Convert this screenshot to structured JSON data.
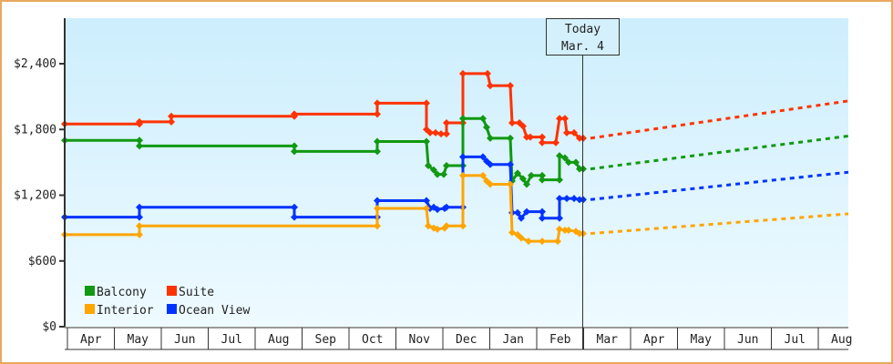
{
  "chart_data": {
    "type": "line",
    "title": "",
    "xlabel": "",
    "ylabel": "",
    "ylim": [
      0,
      2880
    ],
    "y_ticks": [
      {
        "value": 0,
        "label": "$0"
      },
      {
        "value": 600,
        "label": "$600"
      },
      {
        "value": 1200,
        "label": "$1,200"
      },
      {
        "value": 1800,
        "label": "$1,800"
      },
      {
        "value": 2400,
        "label": "$2,400"
      }
    ],
    "x_months": [
      "Apr",
      "May",
      "Jun",
      "Jul",
      "Aug",
      "Sep",
      "Oct",
      "Nov",
      "Dec",
      "Jan",
      "Feb",
      "Mar",
      "Apr",
      "May",
      "Jun",
      "Jul",
      "Aug"
    ],
    "today_marker": {
      "line1": "Today",
      "line2": "Mar. 4"
    },
    "legend": [
      {
        "name": "Balcony",
        "color": "#119911"
      },
      {
        "name": "Suite",
        "color": "#ff3300"
      },
      {
        "name": "Interior",
        "color": "#ffa500"
      },
      {
        "name": "Ocean View",
        "color": "#0033ff"
      }
    ],
    "series": [
      {
        "name": "Suite",
        "color": "#ff3300",
        "points": [
          [
            71,
            1850
          ],
          [
            153,
            1850
          ],
          [
            153,
            1870
          ],
          [
            188,
            1870
          ],
          [
            188,
            1920
          ],
          [
            323,
            1920
          ],
          [
            323,
            1940
          ],
          [
            414,
            1940
          ],
          [
            414,
            2040
          ],
          [
            468,
            2040
          ],
          [
            468,
            1800
          ],
          [
            472,
            1770
          ],
          [
            478,
            1770
          ],
          [
            484,
            1760
          ],
          [
            490,
            1760
          ],
          [
            490,
            1860
          ],
          [
            508,
            1860
          ],
          [
            508,
            2310
          ],
          [
            535,
            2310
          ],
          [
            538,
            2200
          ],
          [
            560,
            2200
          ],
          [
            562,
            1860
          ],
          [
            570,
            1860
          ],
          [
            574,
            1830
          ],
          [
            578,
            1730
          ],
          [
            582,
            1730
          ],
          [
            595,
            1730
          ],
          [
            595,
            1680
          ],
          [
            610,
            1680
          ],
          [
            614,
            1900
          ],
          [
            620,
            1900
          ],
          [
            622,
            1770
          ],
          [
            630,
            1770
          ],
          [
            636,
            1720
          ],
          [
            640,
            1720
          ]
        ],
        "forecast": [
          [
            640,
            1720
          ],
          [
            931,
            2060
          ]
        ]
      },
      {
        "name": "Balcony",
        "color": "#119911",
        "points": [
          [
            71,
            1700
          ],
          [
            153,
            1700
          ],
          [
            153,
            1650
          ],
          [
            323,
            1650
          ],
          [
            323,
            1600
          ],
          [
            414,
            1600
          ],
          [
            414,
            1690
          ],
          [
            468,
            1690
          ],
          [
            470,
            1470
          ],
          [
            476,
            1430
          ],
          [
            480,
            1390
          ],
          [
            487,
            1390
          ],
          [
            490,
            1470
          ],
          [
            508,
            1470
          ],
          [
            508,
            1900
          ],
          [
            530,
            1900
          ],
          [
            534,
            1820
          ],
          [
            538,
            1720
          ],
          [
            560,
            1720
          ],
          [
            562,
            1330
          ],
          [
            568,
            1400
          ],
          [
            574,
            1350
          ],
          [
            578,
            1300
          ],
          [
            583,
            1380
          ],
          [
            595,
            1380
          ],
          [
            595,
            1340
          ],
          [
            614,
            1340
          ],
          [
            614,
            1560
          ],
          [
            620,
            1540
          ],
          [
            624,
            1500
          ],
          [
            632,
            1500
          ],
          [
            636,
            1440
          ],
          [
            640,
            1440
          ]
        ],
        "forecast": [
          [
            640,
            1440
          ],
          [
            931,
            1740
          ]
        ]
      },
      {
        "name": "Ocean View",
        "color": "#0033ff",
        "points": [
          [
            71,
            1000
          ],
          [
            153,
            1000
          ],
          [
            153,
            1090
          ],
          [
            323,
            1090
          ],
          [
            323,
            1000
          ],
          [
            414,
            1000
          ],
          [
            414,
            1150
          ],
          [
            468,
            1150
          ],
          [
            472,
            1080
          ],
          [
            476,
            1090
          ],
          [
            480,
            1070
          ],
          [
            488,
            1080
          ],
          [
            490,
            1090
          ],
          [
            508,
            1090
          ],
          [
            508,
            1550
          ],
          [
            530,
            1550
          ],
          [
            534,
            1510
          ],
          [
            538,
            1480
          ],
          [
            560,
            1480
          ],
          [
            562,
            1040
          ],
          [
            568,
            1040
          ],
          [
            572,
            990
          ],
          [
            578,
            1050
          ],
          [
            595,
            1050
          ],
          [
            595,
            990
          ],
          [
            614,
            990
          ],
          [
            614,
            1170
          ],
          [
            622,
            1170
          ],
          [
            630,
            1170
          ],
          [
            636,
            1160
          ],
          [
            640,
            1160
          ]
        ],
        "forecast": [
          [
            640,
            1160
          ],
          [
            931,
            1410
          ]
        ]
      },
      {
        "name": "Interior",
        "color": "#ffa500",
        "points": [
          [
            71,
            840
          ],
          [
            153,
            840
          ],
          [
            153,
            920
          ],
          [
            414,
            920
          ],
          [
            414,
            1080
          ],
          [
            468,
            1080
          ],
          [
            470,
            920
          ],
          [
            476,
            900
          ],
          [
            480,
            890
          ],
          [
            488,
            900
          ],
          [
            490,
            920
          ],
          [
            508,
            920
          ],
          [
            508,
            1380
          ],
          [
            530,
            1380
          ],
          [
            534,
            1330
          ],
          [
            538,
            1300
          ],
          [
            560,
            1300
          ],
          [
            562,
            860
          ],
          [
            568,
            840
          ],
          [
            572,
            810
          ],
          [
            580,
            780
          ],
          [
            595,
            780
          ],
          [
            612,
            780
          ],
          [
            614,
            890
          ],
          [
            620,
            880
          ],
          [
            624,
            880
          ],
          [
            632,
            870
          ],
          [
            636,
            850
          ],
          [
            640,
            850
          ]
        ],
        "forecast": [
          [
            640,
            850
          ],
          [
            931,
            1030
          ]
        ]
      }
    ]
  }
}
